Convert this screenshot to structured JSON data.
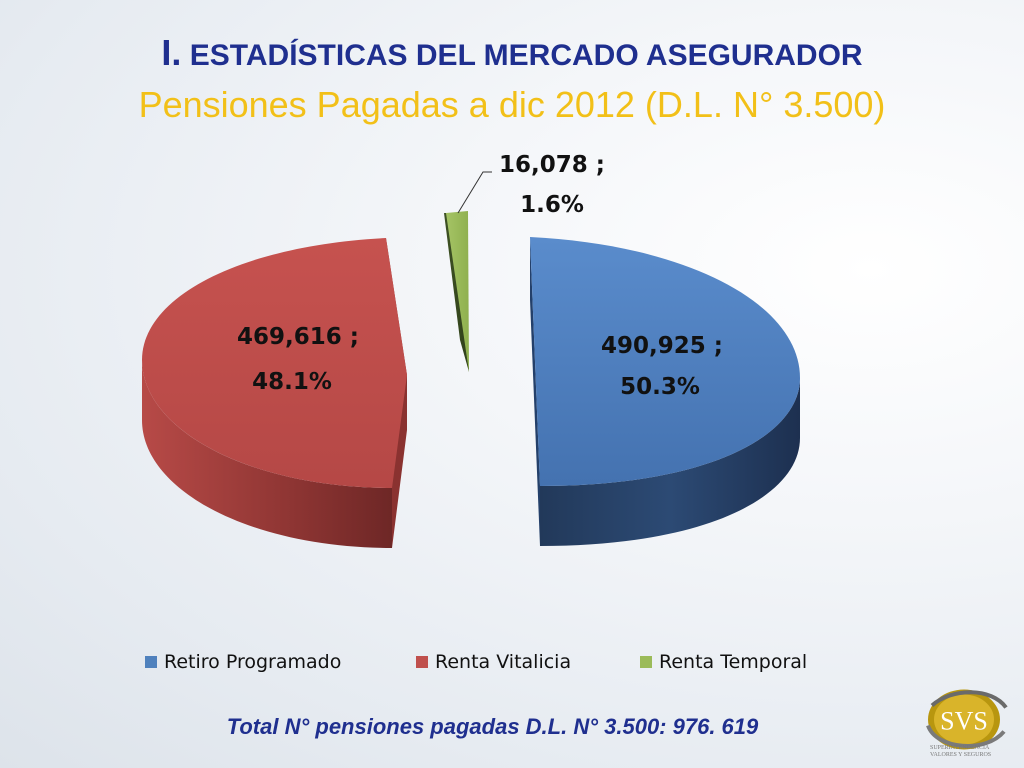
{
  "slide": {
    "title_numeral": "I.",
    "title_text": "ESTADÍSTICAS DEL MERCADO ASEGURADOR",
    "subtitle": "Pensiones Pagadas a dic 2012 (D.L. N° 3.500)",
    "total": "Total N° pensiones pagadas D.L. N° 3.500: 976. 619",
    "logo_text": "SVS",
    "logo_caption": [
      "SUPERINTENDENCIA",
      "VALORES Y SEGUROS"
    ]
  },
  "chart_data": {
    "type": "pie",
    "style": "3d-exploded",
    "title": "",
    "slices": [
      {
        "name": "Retiro Programado",
        "value": 490925,
        "percent": 50.3,
        "label_line1": "490,925 ;",
        "label_line2": "50.3%",
        "color": "#4f81bd"
      },
      {
        "name": "Renta Vitalicia",
        "value": 469616,
        "percent": 48.1,
        "label_line1": "469,616 ;",
        "label_line2": "48.1%",
        "color": "#c0504d"
      },
      {
        "name": "Renta Temporal",
        "value": 16078,
        "percent": 1.6,
        "label_line1": "16,078 ;",
        "label_line2": "1.6%",
        "color": "#9bbb59"
      }
    ],
    "legend_position": "bottom"
  }
}
